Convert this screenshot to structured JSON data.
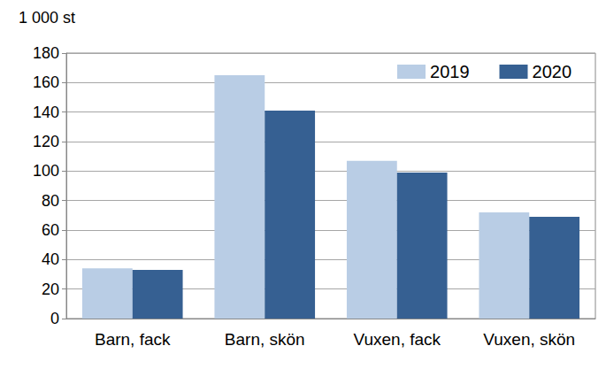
{
  "chart_data": {
    "type": "bar",
    "ylabel": "1 000 st",
    "categories": [
      "Barn, fack",
      "Barn, skön",
      "Vuxen, fack",
      "Vuxen, skön"
    ],
    "series": [
      {
        "name": "2019",
        "color": "#b9cde5",
        "values": [
          34,
          165,
          107,
          72
        ]
      },
      {
        "name": "2020",
        "color": "#366092",
        "values": [
          33,
          141,
          99,
          69
        ]
      }
    ],
    "ylim": [
      0,
      180
    ],
    "yticks": [
      0,
      20,
      40,
      60,
      80,
      100,
      120,
      140,
      160,
      180
    ],
    "grid": true,
    "legend": "top-right"
  }
}
